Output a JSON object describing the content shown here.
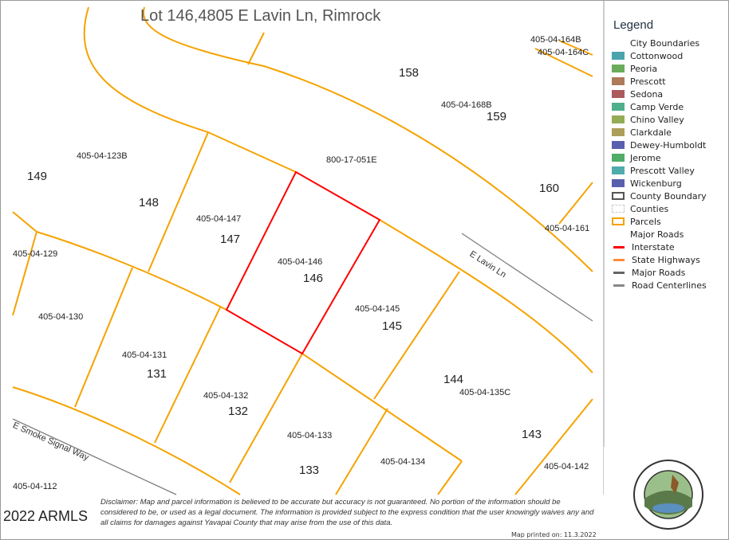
{
  "title": "Lot 146,4805 E Lavin Ln, Rimrock",
  "parcel_labels": [
    {
      "t": "405-04-164B"
    },
    {
      "t": "405-04-164C"
    },
    {
      "t": "405-04-168B"
    },
    {
      "t": "800-17-051E"
    },
    {
      "t": "405-04-123B"
    },
    {
      "t": "405-04-147"
    },
    {
      "t": "405-04-146"
    },
    {
      "t": "405-04-161"
    },
    {
      "t": "405-04-129"
    },
    {
      "t": "405-04-145"
    },
    {
      "t": "405-04-130"
    },
    {
      "t": "405-04-131"
    },
    {
      "t": "405-04-135C"
    },
    {
      "t": "405-04-132"
    },
    {
      "t": "405-04-133"
    },
    {
      "t": "405-04-134"
    },
    {
      "t": "405-04-142"
    },
    {
      "t": "405-04-112"
    }
  ],
  "lot_numbers": [
    "158",
    "159",
    "149",
    "148",
    "160",
    "147",
    "146",
    "145",
    "131",
    "144",
    "132",
    "143",
    "133"
  ],
  "roads": [
    "E Lavin Ln",
    "E Smoke Signal Way"
  ],
  "highlighted_parcel": "405-04-146",
  "colors": {
    "parcel": "#f5a300",
    "highlight": "#ff0000",
    "road": "#808080"
  },
  "legend": {
    "title": "Legend",
    "items": [
      {
        "label": "City Boundaries",
        "color": ""
      },
      {
        "label": "Cottonwood",
        "color": "#4aa3ad"
      },
      {
        "label": "Peoria",
        "color": "#6aac5a"
      },
      {
        "label": "Prescott",
        "color": "#ad7b5a"
      },
      {
        "label": "Sedona",
        "color": "#ad5a5f"
      },
      {
        "label": "Camp Verde",
        "color": "#4fae8c"
      },
      {
        "label": "Chino Valley",
        "color": "#94ac56"
      },
      {
        "label": "Clarkdale",
        "color": "#ad9f5a"
      },
      {
        "label": "Dewey-Humboldt",
        "color": "#5a5fad"
      },
      {
        "label": "Jerome",
        "color": "#4fad67"
      },
      {
        "label": "Prescott Valley",
        "color": "#4facad"
      },
      {
        "label": "Wickenburg",
        "color": "#5a5fad"
      },
      {
        "label": "County Boundary",
        "color": "outline:#555"
      },
      {
        "label": "Counties",
        "color": "outline:#ccc"
      },
      {
        "label": "Parcels",
        "color": "outline:#f5a300"
      },
      {
        "label": "Major Roads",
        "color": ""
      },
      {
        "label": "Interstate",
        "color": "line:#ff0000"
      },
      {
        "label": "State Highways",
        "color": "line:#ff8c3a"
      },
      {
        "label": "Major Roads",
        "color": "line:#666666"
      },
      {
        "label": "Road Centerlines",
        "color": "line:#888888"
      }
    ]
  },
  "disclaimer": "Disclaimer: Map and parcel information is believed to be accurate but accuracy is not guaranteed. No portion of the information should be considered to be, or used as a legal document. The information is provided subject to the express condition that the user knowingly waives any and all claims for damages against Yavapai County that may arise from the use of this data.",
  "watermark": "2022 ARMLS",
  "printed": "Map printed on: 11.3.2022",
  "seal": "Yavapai County Arizona 1864"
}
